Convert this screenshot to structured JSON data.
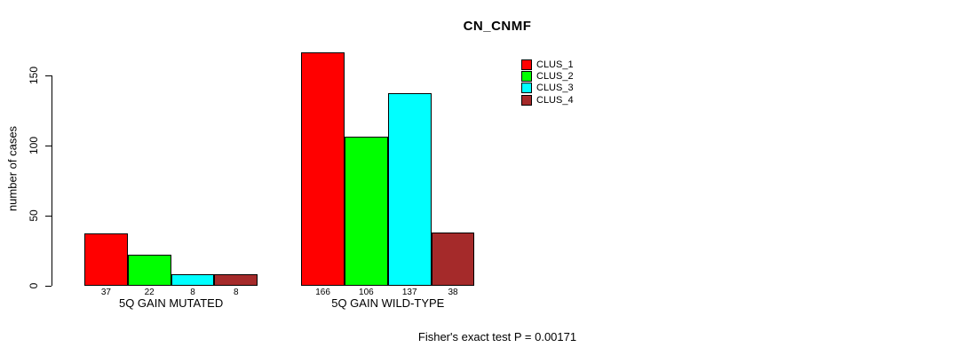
{
  "chart_data": {
    "type": "bar",
    "title": "CN_CNMF",
    "ylabel": "number of cases",
    "xlabel": "",
    "categories": [
      "5Q GAIN MUTATED",
      "5Q GAIN WILD-TYPE"
    ],
    "series": [
      {
        "name": "CLUS_1",
        "color": "#FF0000",
        "values": [
          37,
          166
        ]
      },
      {
        "name": "CLUS_2",
        "color": "#00FF00",
        "values": [
          22,
          106
        ]
      },
      {
        "name": "CLUS_3",
        "color": "#00FFFF",
        "values": [
          8,
          137
        ]
      },
      {
        "name": "CLUS_4",
        "color": "#A52A2A",
        "values": [
          8,
          38
        ]
      }
    ],
    "bar_value_labels": [
      [
        "37",
        "22",
        "8",
        "8"
      ],
      [
        "166",
        "106",
        "137",
        "38"
      ]
    ],
    "yticks": [
      0,
      50,
      100,
      150
    ],
    "ylim": [
      0,
      166
    ],
    "grid": "off",
    "legend_position": "top-right",
    "annotation": "Fisher's exact test P = 0.00171"
  }
}
